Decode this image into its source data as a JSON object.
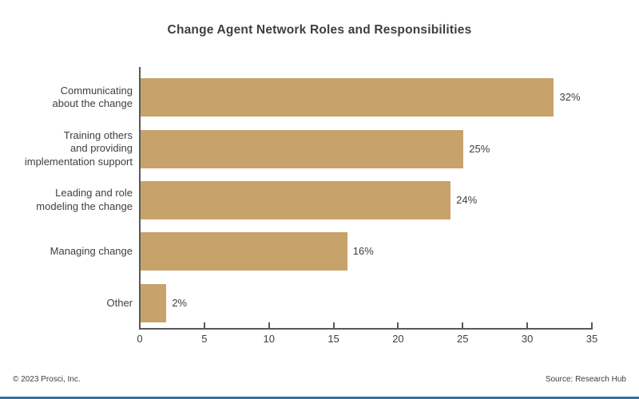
{
  "title": "Change Agent Network Roles and Responsibilities",
  "footer": {
    "copyright": "© 2023 Prosci, Inc.",
    "source": "Source: Research Hub"
  },
  "colors": {
    "bar": "#C8A26B",
    "axis": "#595959",
    "text": "#3F3F3F",
    "accent_bar": "#36719F",
    "background": "#FFFFFF"
  },
  "chart_data": {
    "type": "bar",
    "orientation": "horizontal",
    "title": "Change Agent Network Roles and Responsibilities",
    "categories": [
      "Communicating\nabout the change",
      "Training others\nand providing\nimplementation support",
      "Leading and role\nmodeling the change",
      "Managing change",
      "Other"
    ],
    "values": [
      32,
      25,
      24,
      16,
      2
    ],
    "value_labels": [
      "32%",
      "25%",
      "24%",
      "16%",
      "2%"
    ],
    "xlabel": "",
    "ylabel": "",
    "xlim": [
      0,
      35
    ],
    "x_ticks": [
      0,
      5,
      10,
      15,
      20,
      25,
      30,
      35
    ],
    "grid": false,
    "legend": false,
    "bar_color": "#C8A26B"
  }
}
